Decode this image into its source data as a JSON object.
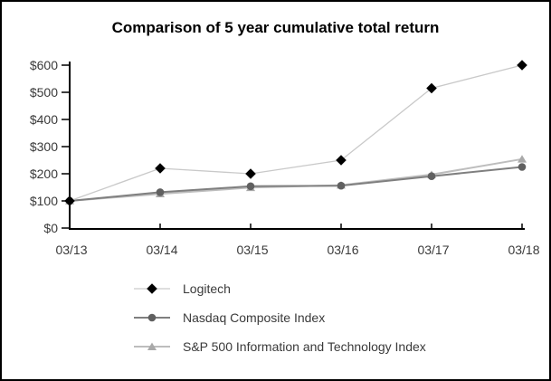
{
  "frame": {
    "background": "#ffffff",
    "border_color": "#000000"
  },
  "chart_data": {
    "type": "line",
    "title": "Comparison of 5 year cumulative total return",
    "categories": [
      "03/13",
      "03/14",
      "03/15",
      "03/16",
      "03/17",
      "03/18"
    ],
    "series": [
      {
        "name": "Logitech",
        "marker": "diamond",
        "marker_color": "#000000",
        "line_color": "#c9c9c9",
        "line_width": 1.3,
        "values": [
          100,
          220,
          200,
          250,
          515,
          600
        ]
      },
      {
        "name": "Nasdaq Composite Index",
        "marker": "circle",
        "marker_color": "#606060",
        "line_color": "#7f7f7f",
        "line_width": 2,
        "values": [
          100,
          132,
          154,
          156,
          191,
          225
        ]
      },
      {
        "name": "S&P 500 Information and Technology Index",
        "marker": "triangle",
        "marker_color": "#a9a9a9",
        "line_color": "#bdbdbd",
        "line_width": 2,
        "values": [
          100,
          126,
          149,
          158,
          197,
          254
        ]
      }
    ],
    "y_axis": {
      "min": 0,
      "max": 600,
      "tick_step": 100,
      "tick_labels": [
        "$0",
        "$100",
        "$200",
        "$300",
        "$400",
        "$500",
        "$600"
      ]
    },
    "xlabel": "",
    "ylabel": "",
    "grid": false,
    "legend_position": "bottom-left",
    "axis_color": "#000000",
    "label_color": "#3a3a3a"
  }
}
